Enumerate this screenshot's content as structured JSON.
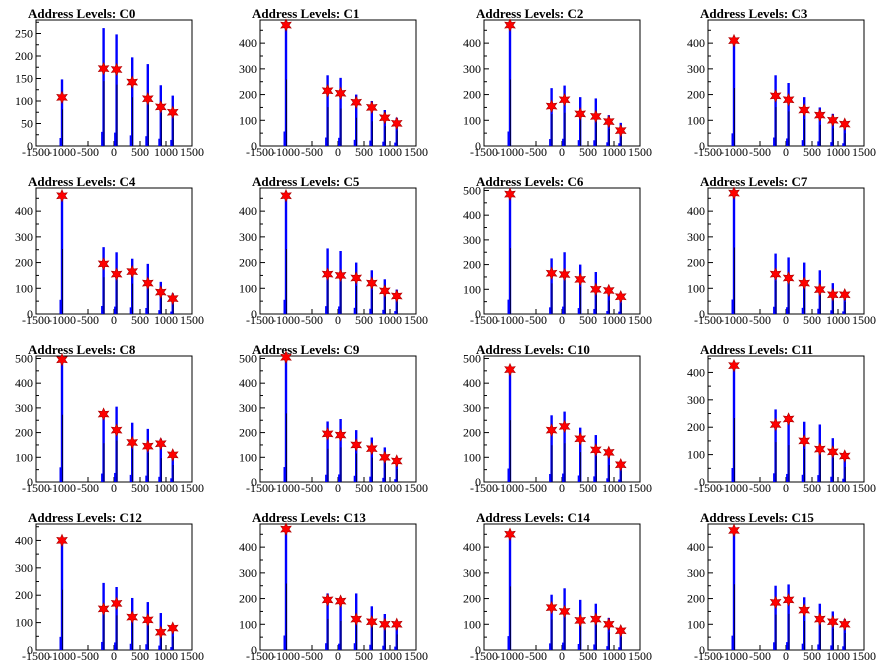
{
  "figure": {
    "title_prefix": "Address Levels: ",
    "x_ticks": [
      -1500,
      -1000,
      -500,
      0,
      500,
      1000,
      1500
    ],
    "x_tick_labels": [
      "-1500",
      "-1000",
      "-500",
      "0",
      "500",
      "1000",
      "1500"
    ],
    "colors": {
      "histogram": "#0000ff",
      "outline": "#000000",
      "marker": "#ff0000",
      "marker_edge": "#aa0000"
    }
  },
  "chart_data": [
    {
      "type": "bar",
      "title": "Address Levels: C0",
      "xlim": [
        -1500,
        1500
      ],
      "ylim": [
        0,
        280
      ],
      "yticks": [
        0,
        50,
        100,
        150,
        200,
        250
      ],
      "peaks": [
        {
          "x": -1000,
          "y": 148
        },
        {
          "x": -200,
          "y": 262
        },
        {
          "x": 50,
          "y": 248
        },
        {
          "x": 350,
          "y": 197
        },
        {
          "x": 650,
          "y": 182
        },
        {
          "x": 900,
          "y": 135
        },
        {
          "x": 1130,
          "y": 112
        }
      ],
      "markers": [
        {
          "x": -1000,
          "y": 108
        },
        {
          "x": -200,
          "y": 172
        },
        {
          "x": 50,
          "y": 170
        },
        {
          "x": 350,
          "y": 142
        },
        {
          "x": 650,
          "y": 105
        },
        {
          "x": 900,
          "y": 87
        },
        {
          "x": 1130,
          "y": 75
        }
      ]
    },
    {
      "type": "bar",
      "title": "Address Levels: C1",
      "xlim": [
        -1500,
        1500
      ],
      "ylim": [
        0,
        490
      ],
      "yticks": [
        0,
        100,
        200,
        300,
        400
      ],
      "peaks": [
        {
          "x": -1000,
          "y": 470
        },
        {
          "x": -200,
          "y": 275
        },
        {
          "x": 50,
          "y": 265
        },
        {
          "x": 350,
          "y": 200
        },
        {
          "x": 650,
          "y": 175
        },
        {
          "x": 900,
          "y": 140
        },
        {
          "x": 1130,
          "y": 110
        }
      ],
      "markers": [
        {
          "x": -1000,
          "y": 470
        },
        {
          "x": -200,
          "y": 215
        },
        {
          "x": 50,
          "y": 205
        },
        {
          "x": 350,
          "y": 170
        },
        {
          "x": 650,
          "y": 150
        },
        {
          "x": 900,
          "y": 110
        },
        {
          "x": 1130,
          "y": 88
        }
      ]
    },
    {
      "type": "bar",
      "title": "Address Levels: C2",
      "xlim": [
        -1500,
        1500
      ],
      "ylim": [
        0,
        490
      ],
      "yticks": [
        0,
        100,
        200,
        300,
        400
      ],
      "peaks": [
        {
          "x": -1000,
          "y": 470
        },
        {
          "x": -200,
          "y": 225
        },
        {
          "x": 50,
          "y": 235
        },
        {
          "x": 350,
          "y": 190
        },
        {
          "x": 650,
          "y": 185
        },
        {
          "x": 900,
          "y": 120
        },
        {
          "x": 1130,
          "y": 90
        }
      ],
      "markers": [
        {
          "x": -1000,
          "y": 470
        },
        {
          "x": -200,
          "y": 155
        },
        {
          "x": 50,
          "y": 180
        },
        {
          "x": 350,
          "y": 125
        },
        {
          "x": 650,
          "y": 115
        },
        {
          "x": 900,
          "y": 95
        },
        {
          "x": 1130,
          "y": 60
        }
      ]
    },
    {
      "type": "bar",
      "title": "Address Levels: C3",
      "xlim": [
        -1500,
        1500
      ],
      "ylim": [
        0,
        490
      ],
      "yticks": [
        0,
        100,
        200,
        300,
        400
      ],
      "peaks": [
        {
          "x": -1000,
          "y": 410
        },
        {
          "x": -200,
          "y": 275
        },
        {
          "x": 50,
          "y": 245
        },
        {
          "x": 350,
          "y": 190
        },
        {
          "x": 650,
          "y": 150
        },
        {
          "x": 900,
          "y": 125
        },
        {
          "x": 1130,
          "y": 90
        }
      ],
      "markers": [
        {
          "x": -1000,
          "y": 410
        },
        {
          "x": -200,
          "y": 195
        },
        {
          "x": 50,
          "y": 180
        },
        {
          "x": 350,
          "y": 140
        },
        {
          "x": 650,
          "y": 120
        },
        {
          "x": 900,
          "y": 100
        },
        {
          "x": 1130,
          "y": 85
        }
      ]
    },
    {
      "type": "bar",
      "title": "Address Levels: C4",
      "xlim": [
        -1500,
        1500
      ],
      "ylim": [
        0,
        490
      ],
      "yticks": [
        0,
        100,
        200,
        300,
        400
      ],
      "peaks": [
        {
          "x": -1000,
          "y": 460
        },
        {
          "x": -200,
          "y": 260
        },
        {
          "x": 50,
          "y": 240
        },
        {
          "x": 350,
          "y": 215
        },
        {
          "x": 650,
          "y": 195
        },
        {
          "x": 900,
          "y": 125
        },
        {
          "x": 1130,
          "y": 80
        }
      ],
      "markers": [
        {
          "x": -1000,
          "y": 460
        },
        {
          "x": -200,
          "y": 195
        },
        {
          "x": 50,
          "y": 155
        },
        {
          "x": 350,
          "y": 165
        },
        {
          "x": 650,
          "y": 120
        },
        {
          "x": 900,
          "y": 85
        },
        {
          "x": 1130,
          "y": 60
        }
      ]
    },
    {
      "type": "bar",
      "title": "Address Levels: C5",
      "xlim": [
        -1500,
        1500
      ],
      "ylim": [
        0,
        490
      ],
      "yticks": [
        0,
        100,
        200,
        300,
        400
      ],
      "peaks": [
        {
          "x": -1000,
          "y": 460
        },
        {
          "x": -200,
          "y": 255
        },
        {
          "x": 50,
          "y": 245
        },
        {
          "x": 350,
          "y": 200
        },
        {
          "x": 650,
          "y": 170
        },
        {
          "x": 900,
          "y": 135
        },
        {
          "x": 1130,
          "y": 95
        }
      ],
      "markers": [
        {
          "x": -1000,
          "y": 460
        },
        {
          "x": -200,
          "y": 155
        },
        {
          "x": 50,
          "y": 150
        },
        {
          "x": 350,
          "y": 140
        },
        {
          "x": 650,
          "y": 120
        },
        {
          "x": 900,
          "y": 90
        },
        {
          "x": 1130,
          "y": 70
        }
      ]
    },
    {
      "type": "bar",
      "title": "Address Levels: C6",
      "xlim": [
        -1500,
        1500
      ],
      "ylim": [
        0,
        510
      ],
      "yticks": [
        0,
        100,
        200,
        300,
        400,
        500
      ],
      "peaks": [
        {
          "x": -1000,
          "y": 485
        },
        {
          "x": -200,
          "y": 225
        },
        {
          "x": 50,
          "y": 250
        },
        {
          "x": 350,
          "y": 200
        },
        {
          "x": 650,
          "y": 170
        },
        {
          "x": 900,
          "y": 100
        },
        {
          "x": 1130,
          "y": 80
        }
      ],
      "markers": [
        {
          "x": -1000,
          "y": 485
        },
        {
          "x": -200,
          "y": 165
        },
        {
          "x": 50,
          "y": 160
        },
        {
          "x": 350,
          "y": 140
        },
        {
          "x": 650,
          "y": 100
        },
        {
          "x": 900,
          "y": 95
        },
        {
          "x": 1130,
          "y": 70
        }
      ]
    },
    {
      "type": "bar",
      "title": "Address Levels: C7",
      "xlim": [
        -1500,
        1500
      ],
      "ylim": [
        0,
        490
      ],
      "yticks": [
        0,
        100,
        200,
        300,
        400
      ],
      "peaks": [
        {
          "x": -1000,
          "y": 470
        },
        {
          "x": -200,
          "y": 235
        },
        {
          "x": 50,
          "y": 220
        },
        {
          "x": 350,
          "y": 200
        },
        {
          "x": 650,
          "y": 170
        },
        {
          "x": 900,
          "y": 120
        },
        {
          "x": 1130,
          "y": 85
        }
      ],
      "markers": [
        {
          "x": -1000,
          "y": 470
        },
        {
          "x": -200,
          "y": 155
        },
        {
          "x": 50,
          "y": 140
        },
        {
          "x": 350,
          "y": 120
        },
        {
          "x": 650,
          "y": 95
        },
        {
          "x": 900,
          "y": 75
        },
        {
          "x": 1130,
          "y": 75
        }
      ]
    },
    {
      "type": "bar",
      "title": "Address Levels: C8",
      "xlim": [
        -1500,
        1500
      ],
      "ylim": [
        0,
        510
      ],
      "yticks": [
        0,
        100,
        200,
        300,
        400,
        500
      ],
      "peaks": [
        {
          "x": -1000,
          "y": 495
        },
        {
          "x": -200,
          "y": 285
        },
        {
          "x": 50,
          "y": 305
        },
        {
          "x": 350,
          "y": 240
        },
        {
          "x": 650,
          "y": 215
        },
        {
          "x": 900,
          "y": 175
        },
        {
          "x": 1130,
          "y": 125
        }
      ],
      "markers": [
        {
          "x": -1000,
          "y": 495
        },
        {
          "x": -200,
          "y": 275
        },
        {
          "x": 50,
          "y": 210
        },
        {
          "x": 350,
          "y": 160
        },
        {
          "x": 650,
          "y": 145
        },
        {
          "x": 900,
          "y": 155
        },
        {
          "x": 1130,
          "y": 110
        }
      ]
    },
    {
      "type": "bar",
      "title": "Address Levels: C9",
      "xlim": [
        -1500,
        1500
      ],
      "ylim": [
        0,
        510
      ],
      "yticks": [
        0,
        100,
        200,
        300,
        400,
        500
      ],
      "peaks": [
        {
          "x": -1000,
          "y": 505
        },
        {
          "x": -200,
          "y": 245
        },
        {
          "x": 50,
          "y": 255
        },
        {
          "x": 350,
          "y": 210
        },
        {
          "x": 650,
          "y": 180
        },
        {
          "x": 900,
          "y": 140
        },
        {
          "x": 1130,
          "y": 95
        }
      ],
      "markers": [
        {
          "x": -1000,
          "y": 505
        },
        {
          "x": -200,
          "y": 195
        },
        {
          "x": 50,
          "y": 190
        },
        {
          "x": 350,
          "y": 150
        },
        {
          "x": 650,
          "y": 135
        },
        {
          "x": 900,
          "y": 100
        },
        {
          "x": 1130,
          "y": 85
        }
      ]
    },
    {
      "type": "bar",
      "title": "Address Levels: C10",
      "xlim": [
        -1500,
        1500
      ],
      "ylim": [
        0,
        510
      ],
      "yticks": [
        0,
        100,
        200,
        300,
        400,
        500
      ],
      "peaks": [
        {
          "x": -1000,
          "y": 455
        },
        {
          "x": -200,
          "y": 270
        },
        {
          "x": 50,
          "y": 285
        },
        {
          "x": 350,
          "y": 220
        },
        {
          "x": 650,
          "y": 190
        },
        {
          "x": 900,
          "y": 125
        },
        {
          "x": 1130,
          "y": 85
        }
      ],
      "markers": [
        {
          "x": -1000,
          "y": 455
        },
        {
          "x": -200,
          "y": 210
        },
        {
          "x": 50,
          "y": 225
        },
        {
          "x": 350,
          "y": 175
        },
        {
          "x": 650,
          "y": 130
        },
        {
          "x": 900,
          "y": 120
        },
        {
          "x": 1130,
          "y": 70
        }
      ]
    },
    {
      "type": "bar",
      "title": "Address Levels: C11",
      "xlim": [
        -1500,
        1500
      ],
      "ylim": [
        0,
        460
      ],
      "yticks": [
        0,
        100,
        200,
        300,
        400
      ],
      "peaks": [
        {
          "x": -1000,
          "y": 425
        },
        {
          "x": -200,
          "y": 265
        },
        {
          "x": 50,
          "y": 245
        },
        {
          "x": 350,
          "y": 220
        },
        {
          "x": 650,
          "y": 210
        },
        {
          "x": 900,
          "y": 160
        },
        {
          "x": 1130,
          "y": 100
        }
      ],
      "markers": [
        {
          "x": -1000,
          "y": 425
        },
        {
          "x": -200,
          "y": 210
        },
        {
          "x": 50,
          "y": 230
        },
        {
          "x": 350,
          "y": 150
        },
        {
          "x": 650,
          "y": 120
        },
        {
          "x": 900,
          "y": 110
        },
        {
          "x": 1130,
          "y": 95
        }
      ]
    },
    {
      "type": "bar",
      "title": "Address Levels: C12",
      "xlim": [
        -1500,
        1500
      ],
      "ylim": [
        0,
        460
      ],
      "yticks": [
        0,
        100,
        200,
        300,
        400
      ],
      "peaks": [
        {
          "x": -1000,
          "y": 400
        },
        {
          "x": -200,
          "y": 245
        },
        {
          "x": 50,
          "y": 230
        },
        {
          "x": 350,
          "y": 190
        },
        {
          "x": 650,
          "y": 175
        },
        {
          "x": 900,
          "y": 135
        },
        {
          "x": 1130,
          "y": 90
        }
      ],
      "markers": [
        {
          "x": -1000,
          "y": 400
        },
        {
          "x": -200,
          "y": 150
        },
        {
          "x": 50,
          "y": 170
        },
        {
          "x": 350,
          "y": 120
        },
        {
          "x": 650,
          "y": 110
        },
        {
          "x": 900,
          "y": 65
        },
        {
          "x": 1130,
          "y": 80
        }
      ]
    },
    {
      "type": "bar",
      "title": "Address Levels: C13",
      "xlim": [
        -1500,
        1500
      ],
      "ylim": [
        0,
        490
      ],
      "yticks": [
        0,
        100,
        200,
        300,
        400
      ],
      "peaks": [
        {
          "x": -1000,
          "y": 470
        },
        {
          "x": -200,
          "y": 220
        },
        {
          "x": 50,
          "y": 205
        },
        {
          "x": 350,
          "y": 220
        },
        {
          "x": 650,
          "y": 170
        },
        {
          "x": 900,
          "y": 140
        },
        {
          "x": 1130,
          "y": 110
        }
      ],
      "markers": [
        {
          "x": -1000,
          "y": 470
        },
        {
          "x": -200,
          "y": 195
        },
        {
          "x": 50,
          "y": 190
        },
        {
          "x": 350,
          "y": 120
        },
        {
          "x": 650,
          "y": 110
        },
        {
          "x": 900,
          "y": 100
        },
        {
          "x": 1130,
          "y": 100
        }
      ]
    },
    {
      "type": "bar",
      "title": "Address Levels: C14",
      "xlim": [
        -1500,
        1500
      ],
      "ylim": [
        0,
        490
      ],
      "yticks": [
        0,
        100,
        200,
        300,
        400
      ],
      "peaks": [
        {
          "x": -1000,
          "y": 450
        },
        {
          "x": -200,
          "y": 215
        },
        {
          "x": 50,
          "y": 240
        },
        {
          "x": 350,
          "y": 195
        },
        {
          "x": 650,
          "y": 180
        },
        {
          "x": 900,
          "y": 125
        },
        {
          "x": 1130,
          "y": 90
        }
      ],
      "markers": [
        {
          "x": -1000,
          "y": 450
        },
        {
          "x": -200,
          "y": 165
        },
        {
          "x": 50,
          "y": 150
        },
        {
          "x": 350,
          "y": 115
        },
        {
          "x": 650,
          "y": 120
        },
        {
          "x": 900,
          "y": 100
        },
        {
          "x": 1130,
          "y": 75
        }
      ]
    },
    {
      "type": "bar",
      "title": "Address Levels: C15",
      "xlim": [
        -1500,
        1500
      ],
      "ylim": [
        0,
        490
      ],
      "yticks": [
        0,
        100,
        200,
        300,
        400
      ],
      "peaks": [
        {
          "x": -1000,
          "y": 465
        },
        {
          "x": -200,
          "y": 250
        },
        {
          "x": 50,
          "y": 255
        },
        {
          "x": 350,
          "y": 205
        },
        {
          "x": 650,
          "y": 180
        },
        {
          "x": 900,
          "y": 150
        },
        {
          "x": 1130,
          "y": 120
        }
      ],
      "markers": [
        {
          "x": -1000,
          "y": 465
        },
        {
          "x": -200,
          "y": 185
        },
        {
          "x": 50,
          "y": 195
        },
        {
          "x": 350,
          "y": 155
        },
        {
          "x": 650,
          "y": 120
        },
        {
          "x": 900,
          "y": 110
        },
        {
          "x": 1130,
          "y": 100
        }
      ]
    }
  ]
}
